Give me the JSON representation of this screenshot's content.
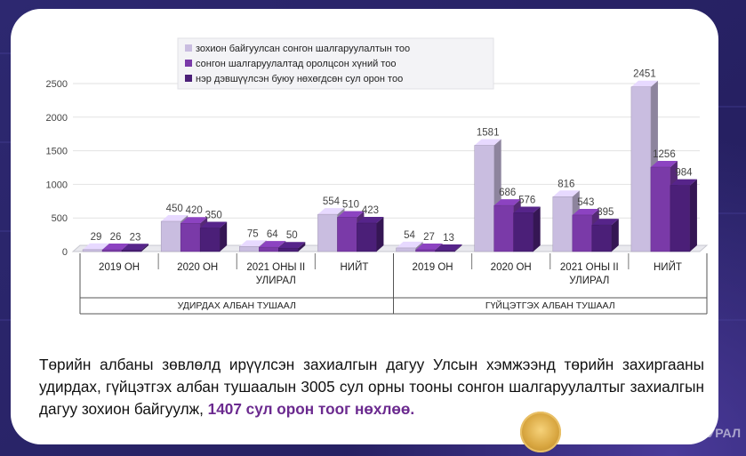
{
  "chart_data": {
    "type": "bar",
    "ylim": [
      0,
      2500
    ],
    "yticks": [
      0,
      500,
      1000,
      1500,
      2000,
      2500
    ],
    "legend_position": "top",
    "groups": [
      {
        "label": "УДИРДАХ АЛБАН ТУШААЛ",
        "categories": [
          "2019 ОН",
          "2020 ОН",
          "2021 ОНЫ II УЛИРАЛ",
          "НИЙТ"
        ]
      },
      {
        "label": "ГҮЙЦЭТГЭХ АЛБАН ТУШААЛ",
        "categories": [
          "2019 ОН",
          "2020 ОН",
          "2021 ОНЫ II УЛИРАЛ",
          "НИЙТ"
        ]
      }
    ],
    "categories": [
      "2019 ОН",
      "2020 ОН",
      "2021 ОНЫ II УЛИРАЛ",
      "НИЙТ",
      "2019 ОН",
      "2020 ОН",
      "2021 ОНЫ II УЛИРАЛ",
      "НИЙТ"
    ],
    "series": [
      {
        "name": "зохион байгуулсан сонгон шалгаруулалтын тоо",
        "color": "#c9bde0",
        "values": [
          29,
          450,
          75,
          554,
          54,
          1581,
          816,
          2451
        ]
      },
      {
        "name": "сонгон шалгаруулалтад оролцсон хүний тоо",
        "color": "#7a3aa8",
        "values": [
          26,
          420,
          64,
          510,
          27,
          686,
          543,
          1256
        ]
      },
      {
        "name": "нэр дэвшүүлсэн буюу нөхөгдсөн сул орон тоо",
        "color": "#4b1f78",
        "values": [
          23,
          350,
          50,
          423,
          13,
          576,
          395,
          984
        ]
      }
    ]
  },
  "caption": {
    "text": "Төрийн албаны зөвлөлд ирүүлсэн захиалгын дагуу Улсын хэмжээнд төрийн захиргааны удирдах, гүйцэтгэх албан тушаалын 3005 сул орны тооны сонгон шалгаруулалтыг захиалгын дагуу зохион байгуулж, ",
    "highlight": "1407 сул орон тоог нөхлөө."
  },
  "footer": {
    "org_name": "МОНГОЛ УЛСЫН ИХ ХУРАЛ"
  }
}
